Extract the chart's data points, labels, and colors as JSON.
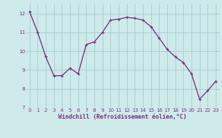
{
  "x": [
    0,
    1,
    2,
    3,
    4,
    5,
    6,
    7,
    8,
    9,
    10,
    11,
    12,
    13,
    14,
    15,
    16,
    17,
    18,
    19,
    20,
    21,
    22,
    23
  ],
  "y": [
    12.1,
    11.0,
    9.7,
    8.7,
    8.7,
    9.1,
    8.8,
    10.35,
    10.5,
    11.0,
    11.65,
    11.7,
    11.8,
    11.75,
    11.65,
    11.3,
    10.7,
    10.1,
    9.7,
    9.4,
    8.8,
    7.45,
    7.9,
    8.4
  ],
  "line_color": "#7b2f7b",
  "marker": "+",
  "marker_color": "#7b2f7b",
  "bg_color": "#ceeaea",
  "grid_color": "#a0cccc",
  "xlabel": "Windchill (Refroidissement éolien,°C)",
  "xlabel_color": "#7b2f7b",
  "tick_color": "#7b2f7b",
  "ylim": [
    7,
    12.5
  ],
  "xlim": [
    -0.5,
    23.5
  ],
  "yticks": [
    7,
    8,
    9,
    10,
    11,
    12
  ],
  "xticks": [
    0,
    1,
    2,
    3,
    4,
    5,
    6,
    7,
    8,
    9,
    10,
    11,
    12,
    13,
    14,
    15,
    16,
    17,
    18,
    19,
    20,
    21,
    22,
    23
  ],
  "linewidth": 1.0
}
